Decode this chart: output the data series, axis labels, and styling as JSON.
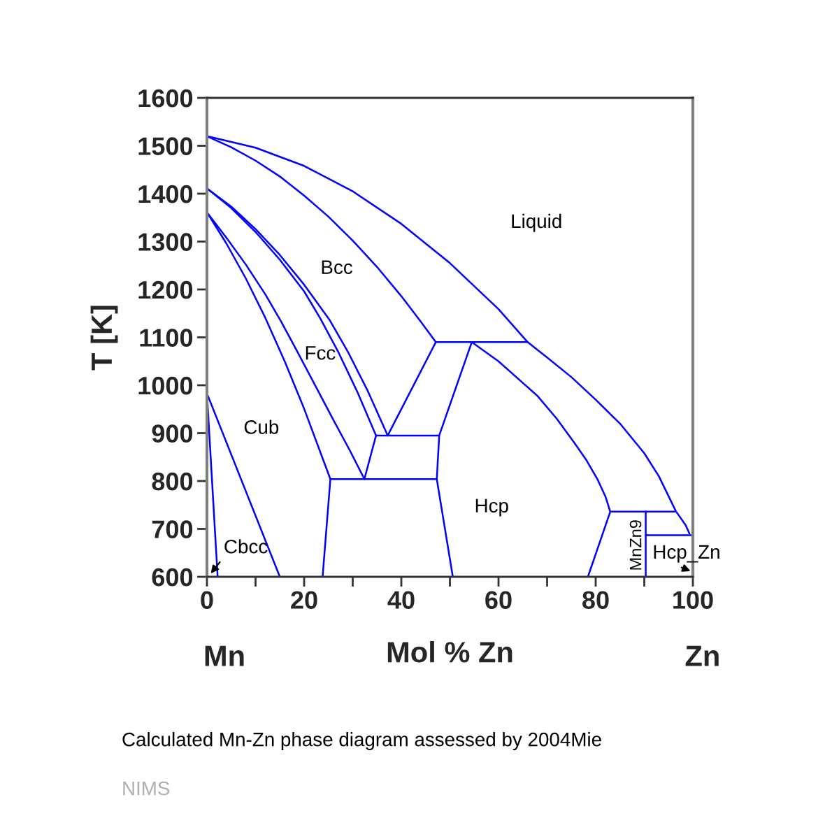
{
  "chart_data": {
    "type": "line",
    "xlabel": "Mol % Zn",
    "ylabel": "T [K]",
    "xlim": [
      0,
      100
    ],
    "ylim": [
      600,
      1600
    ],
    "xticks": [
      0,
      {
        "value": 10,
        "label": null
      },
      20,
      {
        "value": 30,
        "label": null
      },
      40,
      {
        "value": 50,
        "label": null
      },
      60,
      {
        "value": 70,
        "label": null
      },
      80,
      {
        "value": 90,
        "label": null
      },
      100
    ],
    "yticks": [
      600,
      700,
      800,
      900,
      1000,
      1100,
      1200,
      1300,
      1400,
      1500,
      1600
    ],
    "grid": false,
    "series": [
      {
        "color": "#0000ff",
        "x": [
          0,
          10,
          20,
          30,
          40,
          50,
          60,
          66,
          70,
          75,
          80,
          85,
          90,
          93,
          96.5,
          98.5,
          99.3
        ],
        "values": [
          1520,
          1496,
          1458,
          1405,
          1337,
          1255,
          1159,
          1090,
          1058,
          1017,
          970,
          920,
          858,
          810,
          737,
          708,
          690
        ]
      },
      {
        "color": "#0000ff",
        "x": [
          0,
          5,
          10,
          15,
          20,
          25,
          30,
          35,
          40,
          44,
          47.1
        ],
        "values": [
          1520,
          1497,
          1469,
          1436,
          1396,
          1352,
          1302,
          1247,
          1186,
          1133,
          1090
        ]
      },
      {
        "color": "#0000ff",
        "x": [
          0,
          5,
          10,
          15,
          20,
          25.2,
          29,
          33,
          37.2
        ],
        "values": [
          1411,
          1373,
          1326,
          1272,
          1210,
          1137,
          1070,
          990,
          895
        ]
      },
      {
        "color": "#0000ff",
        "x": [
          0,
          5,
          10,
          15,
          20,
          23.3,
          27,
          31,
          34.8
        ],
        "values": [
          1411,
          1370,
          1320,
          1262,
          1196,
          1140,
          1070,
          985,
          895
        ]
      },
      {
        "color": "#0000ff",
        "x": [
          0,
          4,
          8,
          12,
          15.2,
          18.5,
          22,
          26,
          29.5,
          32.4
        ],
        "values": [
          1361,
          1308,
          1252,
          1190,
          1134,
          1072,
          1005,
          928,
          862,
          804
        ]
      },
      {
        "color": "#0000ff",
        "x": [
          0,
          4,
          8,
          12,
          16,
          20,
          25.4,
          23.8
        ],
        "values": [
          1361,
          1296,
          1223,
          1141,
          1050,
          951,
          804,
          600
        ]
      },
      {
        "color": "#0000ff",
        "x": [
          0,
          15.0
        ],
        "values": [
          983,
          600
        ]
      },
      {
        "color": "#0000ff",
        "x": [
          0,
          2.2
        ],
        "values": [
          983,
          600
        ]
      },
      {
        "color": "#0000ff",
        "x": [
          32.4,
          34.8
        ],
        "values": [
          804,
          895
        ]
      },
      {
        "color": "#0000ff",
        "x": [
          37.2,
          47.1
        ],
        "values": [
          895,
          1090
        ]
      },
      {
        "color": "#0000ff",
        "x": [
          47.1,
          66
        ],
        "values": [
          1090,
          1090
        ]
      },
      {
        "color": "#0000ff",
        "x": [
          34.8,
          47.8
        ],
        "values": [
          895,
          895
        ]
      },
      {
        "color": "#0000ff",
        "x": [
          25.4,
          47.3
        ],
        "values": [
          804,
          804
        ]
      },
      {
        "color": "#0000ff",
        "x": [
          54.5,
          47.8,
          47.3,
          50.6
        ],
        "values": [
          1090,
          895,
          804,
          600
        ]
      },
      {
        "color": "#0000ff",
        "x": [
          54.5,
          60,
          65,
          68,
          72,
          75.6,
          78,
          80.4,
          82,
          83,
          78.4
        ],
        "values": [
          1090,
          1050,
          1005,
          978,
          930,
          880,
          845,
          803,
          768,
          736,
          600
        ]
      },
      {
        "color": "#0000ff",
        "x": [
          83,
          96.5
        ],
        "values": [
          736,
          736
        ]
      },
      {
        "color": "#0000ff",
        "x": [
          90.3,
          90.3
        ],
        "values": [
          736,
          600
        ]
      },
      {
        "color": "#0000ff",
        "x": [
          90.3,
          100
        ],
        "values": [
          687,
          687
        ]
      }
    ],
    "annotations": [
      "Liquid",
      "Bcc",
      "Fcc",
      "Cub",
      "Hcp",
      "MnZn9",
      "Hcp_Zn",
      {
        "text": "Cbcc",
        "x": 0.8,
        "y": 607
      },
      "Mn",
      "Zn",
      "Calculated Mn-Zn phase diagram assessed by 2004Mie",
      "NIMS"
    ]
  }
}
